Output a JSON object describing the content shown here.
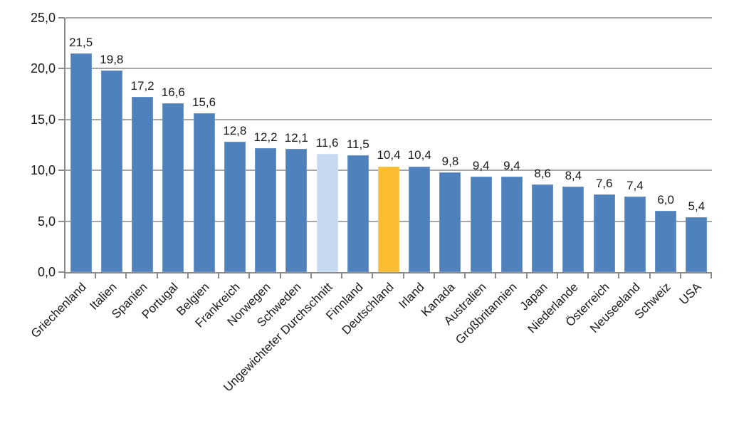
{
  "chart_data": {
    "type": "bar",
    "title": "",
    "xlabel": "",
    "ylabel": "",
    "legend": "none",
    "grid": true,
    "ylim": [
      0,
      25
    ],
    "yticks": [
      0,
      5,
      10,
      15,
      20,
      25
    ],
    "ytick_labels": [
      "0,0",
      "5,0",
      "10,0",
      "15,0",
      "20,0",
      "25,0"
    ],
    "categories": [
      "Griechenland",
      "Italien",
      "Spanien",
      "Portugal",
      "Belgien",
      "Frankreich",
      "Norwegen",
      "Schweden",
      "Ungewichteter Durchschnitt",
      "Finnland",
      "Deutschland",
      "Irland",
      "Kanada",
      "Australien",
      "Großbritannien",
      "Japan",
      "Niederlande",
      "Österreich",
      "Neuseeland",
      "Schweiz",
      "USA"
    ],
    "values": [
      21.5,
      19.8,
      17.2,
      16.6,
      15.6,
      12.8,
      12.2,
      12.1,
      11.6,
      11.5,
      10.4,
      10.4,
      9.8,
      9.4,
      9.4,
      8.6,
      8.4,
      7.6,
      7.4,
      6.0,
      5.4
    ],
    "value_labels": [
      "21,5",
      "19,8",
      "17,2",
      "16,6",
      "15,6",
      "12,8",
      "12,2",
      "12,1",
      "11,6",
      "11,5",
      "10,4",
      "10,4",
      "9,8",
      "9,4",
      "9,4",
      "8,6",
      "8,4",
      "7,6",
      "7,4",
      "6,0",
      "5,4"
    ],
    "average_index": 8,
    "highlight_index": 10,
    "colors": {
      "bar": "#4f81bd",
      "bar_border": "#6d97c9",
      "average_bar": "#c6d9f1",
      "average_bar_border": "#d4e2f4",
      "highlight_bar": "#fcbd33",
      "highlight_bar_border": "#fdc95c",
      "gridline": "#a6a6a6",
      "axis": "#8c8c8c",
      "text": "#1a1a1a",
      "background": "#ffffff"
    }
  }
}
